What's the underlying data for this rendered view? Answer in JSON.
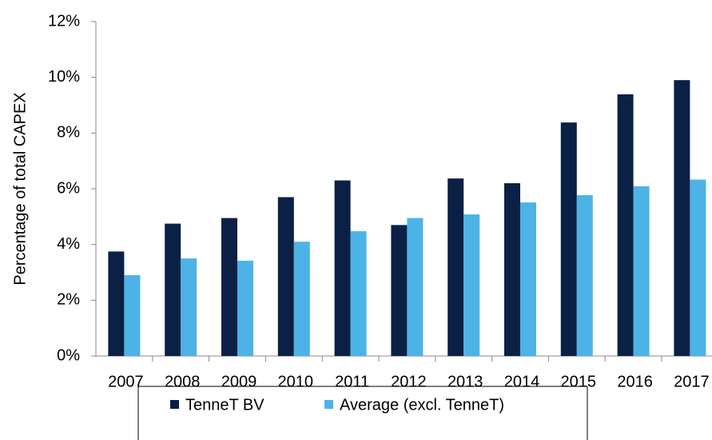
{
  "chart_data": {
    "type": "bar",
    "y_label": "Percentage  of total CAPEX",
    "categories": [
      "2007",
      "2008",
      "2009",
      "2010",
      "2011",
      "2012",
      "2013",
      "2014",
      "2015",
      "2016",
      "2017"
    ],
    "series": [
      {
        "name": "TenneT BV",
        "color": "#0b2045",
        "values": [
          3.75,
          4.75,
          4.95,
          5.7,
          6.3,
          4.7,
          6.37,
          6.2,
          8.38,
          9.39,
          9.9
        ]
      },
      {
        "name": "Average (excl. TenneT)",
        "color": "#4db3e6",
        "values": [
          2.9,
          3.5,
          3.42,
          4.1,
          4.48,
          4.95,
          5.08,
          5.51,
          5.77,
          6.09,
          6.33
        ]
      }
    ],
    "ylim": [
      0,
      12
    ],
    "yticks": [
      {
        "value": 0,
        "label": "0%"
      },
      {
        "value": 2,
        "label": "2%"
      },
      {
        "value": 4,
        "label": "4%"
      },
      {
        "value": 6,
        "label": "6%"
      },
      {
        "value": 8,
        "label": "8%"
      },
      {
        "value": 10,
        "label": "10%"
      },
      {
        "value": 12,
        "label": "12%"
      }
    ],
    "grid": false,
    "legend": "bottom"
  }
}
